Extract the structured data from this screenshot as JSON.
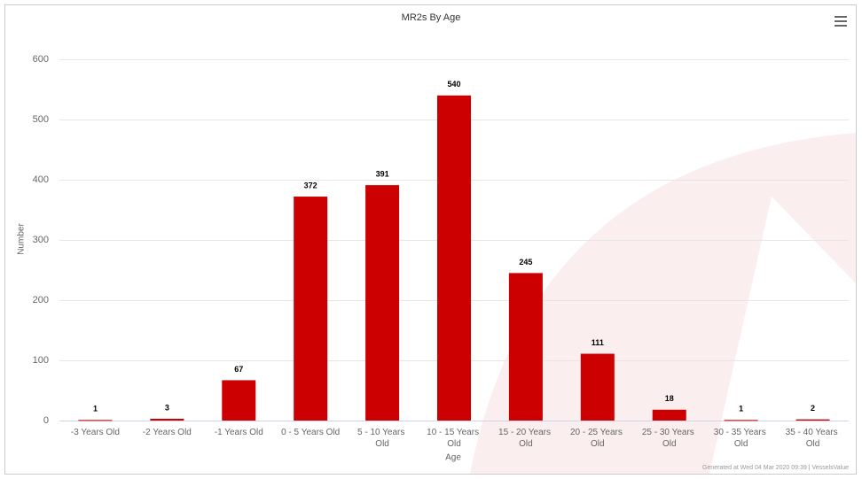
{
  "chart_data": {
    "type": "bar",
    "title": "MR2s By Age",
    "xlabel": "Age",
    "ylabel": "Number",
    "categories": [
      "-3 Years Old",
      "-2 Years Old",
      "-1 Years Old",
      "0 - 5 Years Old",
      "5 - 10 Years Old",
      "10 - 15 Years Old",
      "15 - 20 Years Old",
      "20 - 25 Years Old",
      "25 - 30 Years Old",
      "30 - 35 Years Old",
      "35 - 40 Years Old"
    ],
    "values": [
      1,
      3,
      67,
      372,
      391,
      540,
      245,
      111,
      18,
      1,
      2
    ],
    "color": "#cc0000",
    "ylim": [
      0,
      600
    ],
    "yticks": [
      0,
      100,
      200,
      300,
      400,
      500,
      600
    ],
    "grid": true,
    "credit": "Generated at Wed 04 Mar 2020 09:39 | VesselsValue"
  }
}
